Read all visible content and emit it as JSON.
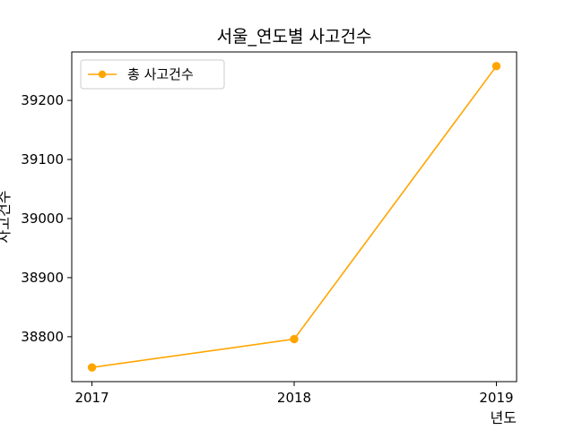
{
  "chart_data": {
    "type": "line",
    "title": "서울_연도별 사고건수",
    "xlabel": "년도",
    "ylabel": "사고건수",
    "x": [
      2017,
      2018,
      2019
    ],
    "series": [
      {
        "name": "총 사고건수",
        "values": [
          38748,
          38796,
          39258
        ],
        "color": "#FFA500",
        "marker": "circle"
      }
    ],
    "xlim": [
      2016.9,
      2019.1
    ],
    "ylim": [
      38724,
      39282
    ],
    "yticks": [
      38800,
      38900,
      39000,
      39100,
      39200
    ],
    "xticks": [
      2017,
      2018,
      2019
    ],
    "grid": false,
    "legend_position": "top-left"
  }
}
